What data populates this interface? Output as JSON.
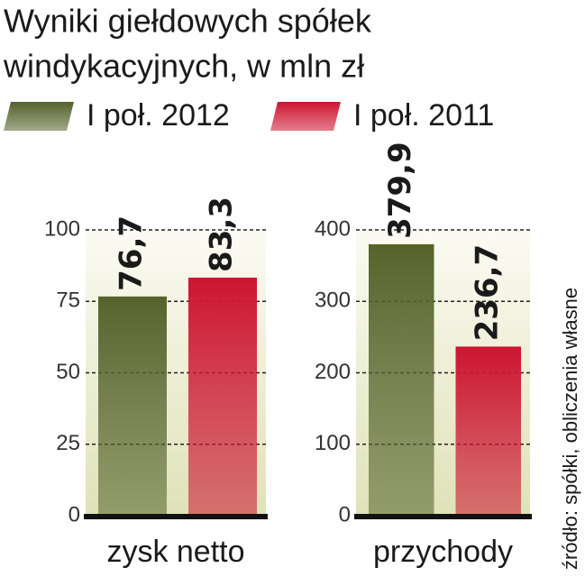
{
  "title": [
    "Wyniki giełdowych spółek",
    "windykacyjnych, w mln zł"
  ],
  "source": "źródło: spółki, obliczenia własne",
  "legend": [
    {
      "label": "I poł. 2012",
      "color": "#55632b"
    },
    {
      "label": "I poł. 2011",
      "color": "#cc1530"
    }
  ],
  "chart_data": [
    {
      "type": "bar",
      "xlabel": "zysk netto",
      "values": [
        76.7,
        83.3
      ],
      "value_labels": [
        "76,7",
        "83,3"
      ],
      "ylim": [
        0,
        100
      ],
      "yticks": [
        0,
        25,
        50,
        75,
        100
      ]
    },
    {
      "type": "bar",
      "xlabel": "przychody",
      "values": [
        379.9,
        236.7
      ],
      "value_labels": [
        "379,9",
        "236,7"
      ],
      "ylim": [
        0,
        400
      ],
      "yticks": [
        0,
        100,
        200,
        300,
        400
      ]
    }
  ]
}
